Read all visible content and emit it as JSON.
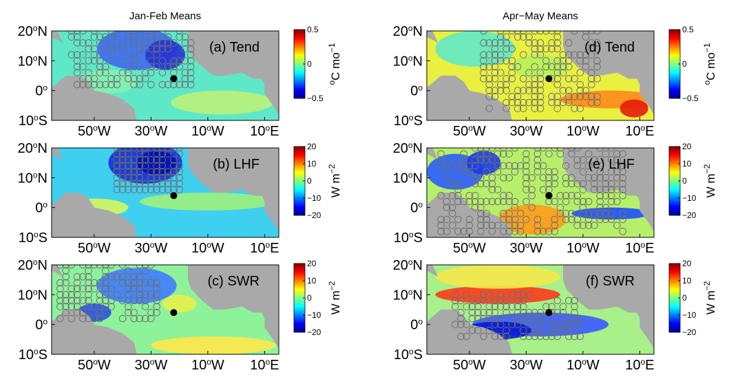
{
  "chart_data": [
    {
      "type": "heatmap",
      "title": "Jan-Feb Means",
      "panels": [
        {
          "label": "(a) Tend",
          "colorbar": {
            "ticks": [
              "0.5",
              "0",
              "−0.5"
            ],
            "unit_main": "C mo",
            "unit_pre": "o",
            "unit_sup": "−1"
          }
        },
        {
          "label": "(b) LHF",
          "colorbar": {
            "ticks": [
              "20",
              "10",
              "0",
              "−10",
              "−20"
            ],
            "unit_main": "W m",
            "unit_pre": "",
            "unit_sup": "−2"
          }
        },
        {
          "label": "(c) SWR",
          "colorbar": {
            "ticks": [
              "20",
              "10",
              "0",
              "−10",
              "−20"
            ],
            "unit_main": "W m",
            "unit_pre": "",
            "unit_sup": "−2"
          }
        }
      ]
    },
    {
      "type": "heatmap",
      "title": "Apr−May Means",
      "panels": [
        {
          "label": "(d) Tend",
          "colorbar": {
            "ticks": [
              "0.5",
              "0",
              "−0.5"
            ],
            "unit_main": "C mo",
            "unit_pre": "o",
            "unit_sup": "−1"
          }
        },
        {
          "label": "(e) LHF",
          "colorbar": {
            "ticks": [
              "20",
              "10",
              "0",
              "−10",
              "−20"
            ],
            "unit_main": "W m",
            "unit_pre": "",
            "unit_sup": "−2"
          }
        },
        {
          "label": "(f) SWR",
          "colorbar": {
            "ticks": [
              "20",
              "10",
              "0",
              "−10",
              "−20"
            ],
            "unit_main": "W m",
            "unit_pre": "",
            "unit_sup": "−2"
          }
        }
      ]
    }
  ],
  "axes": {
    "y_ticks": [
      {
        "num": "20",
        "hem": "N"
      },
      {
        "num": "10",
        "hem": "N"
      },
      {
        "num": "0",
        "hem": ""
      },
      {
        "num": "10",
        "hem": "S"
      }
    ],
    "x_ticks": [
      {
        "num": "50",
        "hem": "W"
      },
      {
        "num": "30",
        "hem": "W"
      },
      {
        "num": "10",
        "hem": "W"
      },
      {
        "num": "10",
        "hem": "E"
      }
    ],
    "deg": "o",
    "lat_range": [
      -10,
      20
    ],
    "lon_range": [
      -65,
      15
    ]
  },
  "marker": {
    "lon": -22,
    "lat": 4
  },
  "colors": {
    "land": "#a9a9a9",
    "stipple": "#6f6f6f",
    "marker": "#000000"
  }
}
